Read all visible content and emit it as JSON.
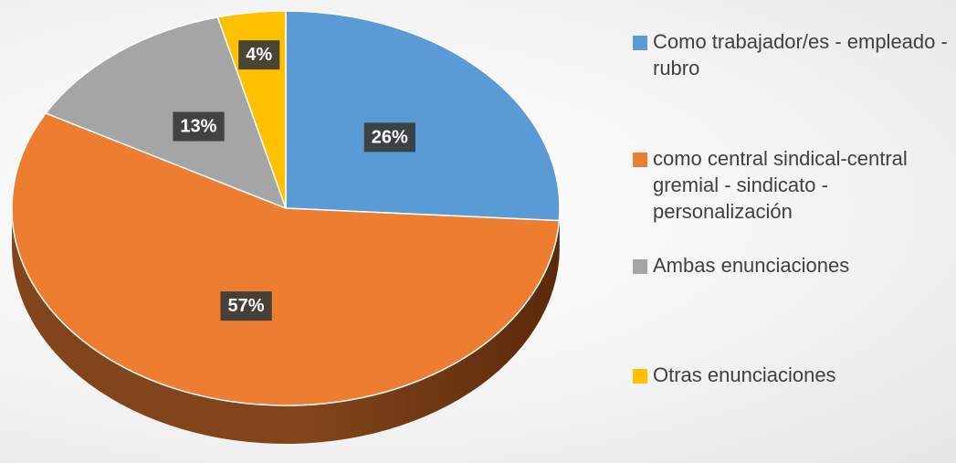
{
  "chart_data": {
    "type": "pie",
    "categories": [
      "Como trabajador/es - empleado - rubro",
      "como central sindical-central gremial - sindicato - personalización",
      "Ambas enunciaciones",
      "Otras enunciaciones"
    ],
    "values": [
      26,
      57,
      13,
      4
    ],
    "value_labels": [
      "26%",
      "57%",
      "13%",
      "4%"
    ],
    "colors": [
      "#5b9bd5",
      "#ed7d31",
      "#a5a5a5",
      "#ffc000"
    ],
    "legend": "right"
  }
}
